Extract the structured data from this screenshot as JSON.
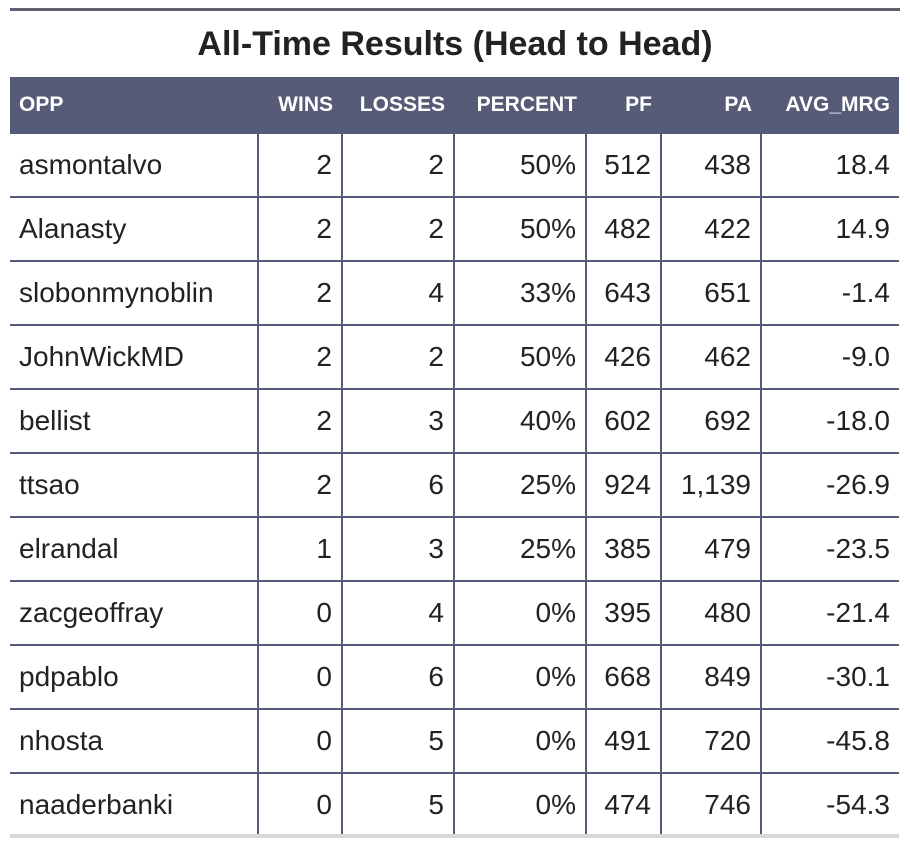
{
  "title": "All-Time Results (Head to Head)",
  "columns": [
    "OPP",
    "WINS",
    "LOSSES",
    "PERCENT",
    "PF",
    "PA",
    "AVG_MRG"
  ],
  "rows": [
    [
      "asmontalvo",
      "2",
      "2",
      "50%",
      "512",
      "438",
      "18.4"
    ],
    [
      "Alanasty",
      "2",
      "2",
      "50%",
      "482",
      "422",
      "14.9"
    ],
    [
      "slobonmynoblin",
      "2",
      "4",
      "33%",
      "643",
      "651",
      "-1.4"
    ],
    [
      "JohnWickMD",
      "2",
      "2",
      "50%",
      "426",
      "462",
      "-9.0"
    ],
    [
      "bellist",
      "2",
      "3",
      "40%",
      "602",
      "692",
      "-18.0"
    ],
    [
      "ttsao",
      "2",
      "6",
      "25%",
      "924",
      "1,139",
      "-26.9"
    ],
    [
      "elrandal",
      "1",
      "3",
      "25%",
      "385",
      "479",
      "-23.5"
    ],
    [
      "zacgeoffray",
      "0",
      "4",
      "0%",
      "395",
      "480",
      "-21.4"
    ],
    [
      "pdpablo",
      "0",
      "6",
      "0%",
      "668",
      "849",
      "-30.1"
    ],
    [
      "nhosta",
      "0",
      "5",
      "0%",
      "491",
      "720",
      "-45.8"
    ],
    [
      "naaderbanki",
      "0",
      "5",
      "0%",
      "474",
      "746",
      "-54.3"
    ]
  ],
  "colors": {
    "header_bg": "#565c77",
    "header_text": "#ffffff",
    "grid": "#565c77",
    "text": "#222222"
  }
}
